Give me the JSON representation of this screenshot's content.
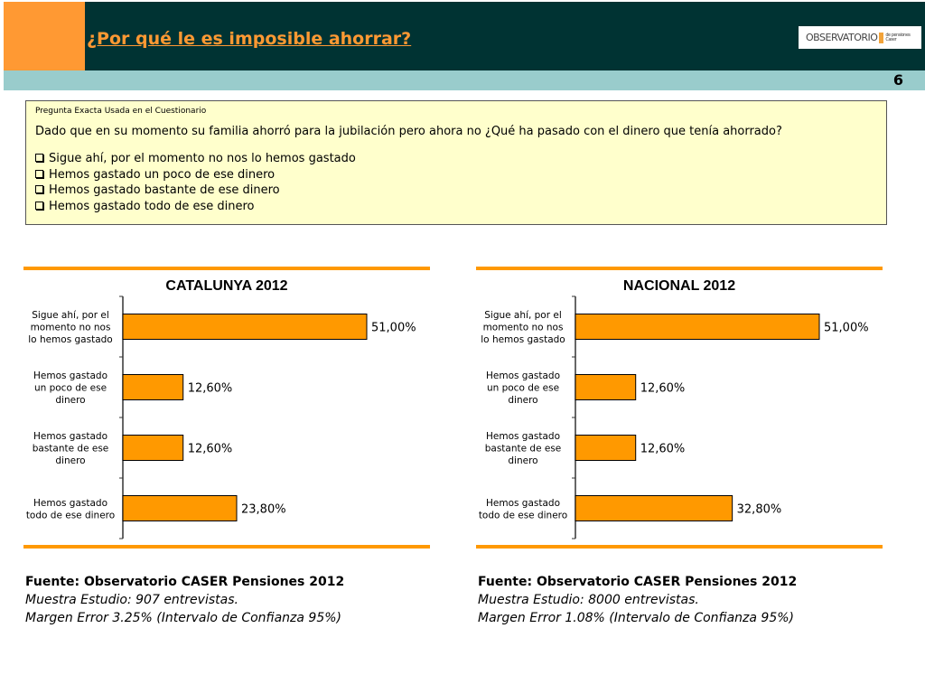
{
  "header": {
    "title": "¿Por qué le es imposible ahorrar?",
    "logo_text": "OBSERVATORIO",
    "logo_sub": "de pensiones Caser",
    "page_number": "6"
  },
  "question": {
    "label": "Pregunta Exacta Usada en el Cuestionario",
    "text": "Dado que en su momento su familia ahorró para la jubilación pero ahora no ¿Qué ha pasado con el dinero que tenía ahorrado?",
    "options": [
      "Sigue ahí, por el momento no nos lo hemos gastado",
      "Hemos gastado un poco de ese dinero",
      "Hemos gastado bastante de ese dinero",
      "Hemos gastado todo de ese dinero"
    ]
  },
  "colors": {
    "bar": "#ff9900",
    "header": "#003333",
    "accent": "#ff9933",
    "band": "#99cccc",
    "question_bg": "#ffffcc"
  },
  "chart_data": [
    {
      "type": "bar",
      "orientation": "horizontal",
      "title": "CATALUNYA 2012",
      "categories": [
        [
          "Sigue ahí, por el",
          "momento no nos",
          "lo hemos gastado"
        ],
        [
          "Hemos gastado",
          "un poco de ese",
          "dinero"
        ],
        [
          "Hemos gastado",
          "bastante de ese",
          "dinero"
        ],
        [
          "Hemos gastado",
          "todo de ese dinero"
        ]
      ],
      "values": [
        51.0,
        12.6,
        12.6,
        23.8
      ],
      "data_labels": [
        "51,00%",
        "12,60%",
        "12,60%",
        "23,80%"
      ],
      "xlim": [
        0,
        60
      ],
      "grid": false
    },
    {
      "type": "bar",
      "orientation": "horizontal",
      "title": "NACIONAL 2012",
      "categories": [
        [
          "Sigue ahí, por el",
          "momento no nos",
          "lo hemos gastado"
        ],
        [
          "Hemos gastado",
          "un poco de ese",
          "dinero"
        ],
        [
          "Hemos gastado",
          "bastante de ese",
          "dinero"
        ],
        [
          "Hemos gastado",
          "todo de ese dinero"
        ]
      ],
      "values": [
        51.0,
        12.6,
        12.6,
        32.8
      ],
      "data_labels": [
        "51,00%",
        "12,60%",
        "12,60%",
        "32,80%"
      ],
      "xlim": [
        0,
        60
      ],
      "grid": false
    }
  ],
  "footers": [
    {
      "source": "Fuente: Observatorio CASER Pensiones 2012",
      "sample": "Muestra Estudio: 907 entrevistas.",
      "margin": "Margen Error 3.25% (Intervalo de Confianza 95%)"
    },
    {
      "source": "Fuente: Observatorio CASER Pensiones 2012",
      "sample": "Muestra Estudio: 8000 entrevistas.",
      "margin": "Margen Error 1.08% (Intervalo de Confianza 95%)"
    }
  ]
}
